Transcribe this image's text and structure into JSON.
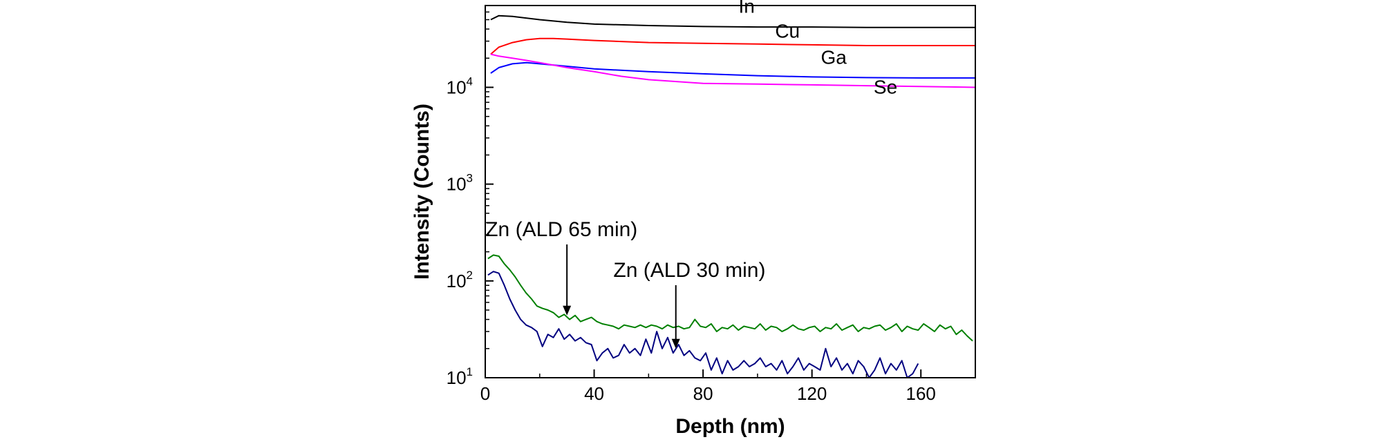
{
  "chart_data": {
    "type": "line",
    "title": "",
    "xlabel": "Depth (nm)",
    "ylabel": "Intensity (Counts)",
    "xlim": [
      0,
      180
    ],
    "ylim": [
      10,
      70000
    ],
    "yscale": "log",
    "grid": false,
    "x_ticks": [
      "0",
      "40",
      "80",
      "120",
      "160"
    ],
    "y_ticks": [
      {
        "base": "10",
        "exp": "1"
      },
      {
        "base": "10",
        "exp": "2"
      },
      {
        "base": "10",
        "exp": "3"
      },
      {
        "base": "10",
        "exp": "4"
      }
    ],
    "series": [
      {
        "name": "In",
        "color": "#000000",
        "x": [
          2,
          5,
          10,
          20,
          30,
          40,
          60,
          80,
          100,
          120,
          140,
          160,
          180
        ],
        "y": [
          50000,
          55000,
          54000,
          50000,
          47000,
          45000,
          43500,
          42500,
          42000,
          42000,
          41500,
          41500,
          41500
        ]
      },
      {
        "name": "Cu",
        "color": "#ff0000",
        "x": [
          2,
          5,
          10,
          15,
          20,
          25,
          30,
          40,
          60,
          80,
          100,
          120,
          140,
          160,
          180
        ],
        "y": [
          22000,
          26000,
          29000,
          31000,
          32000,
          32000,
          31500,
          30500,
          29000,
          28500,
          28000,
          27500,
          27000,
          27000,
          27000
        ]
      },
      {
        "name": "Ga",
        "color": "#0000ff",
        "x": [
          2,
          5,
          10,
          15,
          20,
          30,
          40,
          60,
          80,
          100,
          120,
          140,
          160,
          180
        ],
        "y": [
          14000,
          16000,
          17500,
          18000,
          17500,
          16500,
          15500,
          14500,
          13800,
          13200,
          12800,
          12600,
          12500,
          12500
        ]
      },
      {
        "name": "Se",
        "color": "#ff00ff",
        "x": [
          2,
          5,
          10,
          15,
          20,
          30,
          40,
          50,
          60,
          80,
          100,
          120,
          140,
          160,
          180
        ],
        "y": [
          22000,
          21000,
          20000,
          19000,
          18000,
          16000,
          14500,
          13000,
          12000,
          11000,
          10800,
          10600,
          10400,
          10200,
          10000
        ]
      },
      {
        "name": "Zn (ALD 65 min)",
        "color": "#008000",
        "x": [
          1,
          3,
          5,
          7,
          9,
          11,
          13,
          15,
          17,
          19,
          21,
          23,
          25,
          27,
          29,
          31,
          33,
          35,
          37,
          39,
          41,
          43,
          45,
          47,
          49,
          51,
          53,
          55,
          57,
          59,
          61,
          63,
          65,
          67,
          69,
          71,
          73,
          75,
          77,
          79,
          81,
          83,
          85,
          87,
          89,
          91,
          93,
          95,
          97,
          99,
          101,
          103,
          105,
          107,
          109,
          111,
          113,
          115,
          117,
          119,
          121,
          123,
          125,
          127,
          129,
          131,
          133,
          135,
          137,
          139,
          141,
          143,
          145,
          147,
          149,
          151,
          153,
          155,
          157,
          159,
          161,
          163,
          165,
          167,
          169,
          171,
          173,
          175,
          177,
          179
        ],
        "y": [
          170,
          185,
          180,
          150,
          130,
          110,
          90,
          75,
          65,
          55,
          52,
          50,
          47,
          42,
          45,
          40,
          44,
          38,
          40,
          42,
          38,
          36,
          35,
          34,
          32,
          35,
          34,
          33,
          35,
          33,
          35,
          34,
          32,
          35,
          33,
          34,
          32,
          33,
          40,
          34,
          33,
          36,
          30,
          33,
          32,
          35,
          31,
          34,
          33,
          32,
          36,
          31,
          34,
          33,
          30,
          32,
          35,
          32,
          31,
          33,
          34,
          30,
          33,
          32,
          36,
          31,
          33,
          35,
          30,
          33,
          32,
          34,
          35,
          31,
          33,
          36,
          30,
          34,
          32,
          31,
          36,
          33,
          30,
          35,
          32,
          34,
          28,
          31,
          27,
          24
        ]
      },
      {
        "name": "Zn (ALD 30 min)",
        "color": "#000080",
        "x": [
          1,
          3,
          5,
          7,
          9,
          11,
          13,
          15,
          17,
          19,
          21,
          23,
          25,
          27,
          29,
          31,
          33,
          35,
          37,
          39,
          41,
          43,
          45,
          47,
          49,
          51,
          53,
          55,
          57,
          59,
          61,
          63,
          65,
          67,
          69,
          71,
          73,
          75,
          77,
          79,
          81,
          83,
          85,
          87,
          89,
          91,
          93,
          95,
          97,
          99,
          101,
          103,
          105,
          107,
          109,
          111,
          113,
          115,
          117,
          119,
          121,
          123,
          125,
          127,
          129,
          131,
          133,
          135,
          137,
          139,
          141,
          143,
          145,
          147,
          149,
          151,
          153,
          155,
          157,
          159
        ],
        "y": [
          115,
          125,
          120,
          90,
          65,
          50,
          40,
          35,
          33,
          30,
          21,
          28,
          26,
          32,
          25,
          28,
          24,
          26,
          23,
          22,
          15,
          18,
          20,
          16,
          17,
          22,
          18,
          20,
          17,
          25,
          18,
          30,
          20,
          26,
          18,
          22,
          17,
          19,
          16,
          15,
          18,
          12,
          16,
          11,
          15,
          12,
          13,
          15,
          13,
          14,
          16,
          13,
          14,
          12,
          15,
          11,
          13,
          16,
          12,
          14,
          13,
          12,
          20,
          13,
          16,
          12,
          14,
          11,
          15,
          13,
          10,
          12,
          16,
          11,
          14,
          12,
          15,
          10,
          11,
          14
        ]
      }
    ],
    "annotations": [
      {
        "text": "Zn (ALD 65 min)",
        "arrow_x": 30,
        "arrow_y": 44
      },
      {
        "text": "Zn (ALD 30 min)",
        "arrow_x": 70,
        "arrow_y": 20
      }
    ]
  }
}
